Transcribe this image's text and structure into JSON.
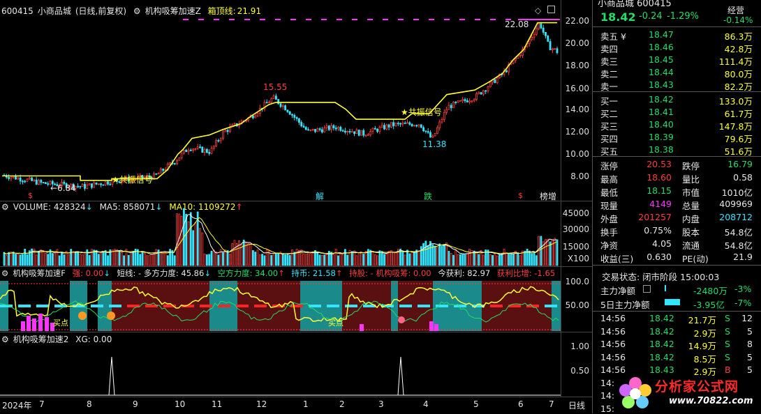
{
  "main_chart": {
    "stock_code": "600415",
    "stock_name": "小商品城",
    "period": "(日线,前复权)",
    "indicator_name": "机构吸筹加速Z",
    "top_line_label": "箱顶线:",
    "top_line_value": "21.91",
    "price_axis": [
      "22.00",
      "20.00",
      "18.00",
      "16.00",
      "14.00",
      "12.00",
      "10.00",
      "8.00"
    ],
    "annotations": {
      "high_label": "15.55",
      "low_label": "11.38",
      "peak_label": "22.08",
      "start_label": "←6.84",
      "signal_text": "共振信号",
      "marker_jie": "解",
      "marker_die": "跌",
      "marker_dollar": "$",
      "marker_bang": "榜增"
    },
    "colors": {
      "up": "#ff3b3b",
      "down": "#33e6ff",
      "box_line": "#ffff33",
      "signal": "#ff33ff"
    }
  },
  "volume_pane": {
    "volume_label": "VOLUME: 428324",
    "ma5_label": "MA5: 858071",
    "ma10_label": "MA10: 1109272",
    "axis": [
      "45000",
      "30000",
      "15000"
    ],
    "unit": "X100"
  },
  "indicator_pane": {
    "name": "机构吸筹加速F",
    "strong_label": "强: 0.00",
    "short_label": "短线: - 多方力度: 45.86",
    "short_force_label": "空方力度: 34.00",
    "hold_label": "持币: 21.58",
    "hold_stock_label": "持股: - 机构吸筹: 0.00",
    "profit_label": "今获利: 82.97",
    "profit_ratio_label": "获利比增: -1.65",
    "axis": [
      "100.0",
      "50.00"
    ],
    "buy_point_text": "买点"
  },
  "xg_pane": {
    "name": "机构吸筹加速2",
    "xg_label": "XG: 0.00",
    "axis": [
      "1.00",
      "0.50"
    ]
  },
  "time_axis": {
    "labels": [
      "2024年",
      "7",
      "8",
      "9",
      "10",
      "11",
      "12",
      "1",
      "2",
      "3",
      "4",
      "5",
      "6",
      "7"
    ],
    "period": "日线"
  },
  "quote_panel": {
    "title": "小商品城 600415",
    "price": "18.42",
    "change": "-0.24",
    "change_pct": "-1.29%",
    "tag": "经营",
    "tag_pct": "-0.14%",
    "asks": [
      {
        "label": "卖五 ¥",
        "price": "18.47",
        "vol": "86.3万"
      },
      {
        "label": "卖四",
        "price": "18.46",
        "vol": "42.8万"
      },
      {
        "label": "卖三",
        "price": "18.45",
        "vol": "111.4万"
      },
      {
        "label": "卖二",
        "price": "18.44",
        "vol": "80.0万"
      },
      {
        "label": "卖一",
        "price": "18.43",
        "vol": "82.2万"
      }
    ],
    "bids": [
      {
        "label": "买一",
        "price": "18.42",
        "vol": "133.0万"
      },
      {
        "label": "买二",
        "price": "18.41",
        "vol": "61.7万"
      },
      {
        "label": "买三",
        "price": "18.40",
        "vol": "147.8万"
      },
      {
        "label": "买四",
        "price": "18.39",
        "vol": "79.6万"
      },
      {
        "label": "买五",
        "price": "18.38",
        "vol": "51.6万"
      }
    ],
    "stats": [
      {
        "l1": "涨停",
        "v1": "20.53",
        "c1": "red",
        "l2": "跌停",
        "v2": "16.79",
        "c2": "green"
      },
      {
        "l1": "最高",
        "v1": "18.60",
        "c1": "red",
        "l2": "量比",
        "v2": "0.58",
        "c2": "white"
      },
      {
        "l1": "最低",
        "v1": "18.15",
        "c1": "green",
        "l2": "市值",
        "v2": "1010亿",
        "c2": "white"
      },
      {
        "l1": "现量",
        "v1": "4149",
        "c1": "magenta",
        "l2": "总量",
        "v2": "409969",
        "c2": "white"
      },
      {
        "l1": "外盘",
        "v1": "201257",
        "c1": "red",
        "l2": "内盘",
        "v2": "208712",
        "c2": "cyan"
      },
      {
        "l1": "换手",
        "v1": "0.75%",
        "c1": "white",
        "l2": "股本",
        "v2": "54.8亿",
        "c2": "white"
      },
      {
        "l1": "净资",
        "v1": "4.05",
        "c1": "white",
        "l2": "流通",
        "v2": "54.8亿",
        "c2": "white"
      },
      {
        "l1": "收益(三)",
        "v1": "0.630",
        "c1": "white",
        "l2": "PE(动)",
        "v2": "21.9",
        "c2": "white"
      }
    ],
    "trade_status": "交易状态: 闭市阶段 15:00:03",
    "main_net_label": "主力净额",
    "main_net_value": "-2480万",
    "main_net_pct": "-3%",
    "five_day_label": "5日主力净额",
    "five_day_value": "-3.95亿",
    "five_day_pct": "-7%",
    "ticks": [
      {
        "time": "14:56",
        "price": "18.42",
        "vol": "21.7万",
        "side": "S",
        "n": "12"
      },
      {
        "time": "14:56",
        "price": "18.42",
        "vol": "2.9万",
        "side": "S",
        "n": "5"
      },
      {
        "time": "14:56",
        "price": "18.42",
        "vol": "14.9万",
        "side": "S",
        "n": "8"
      },
      {
        "time": "14:56",
        "price": "18.42",
        "vol": "8.5万",
        "side": "S",
        "n": "5"
      },
      {
        "time": "14:56",
        "price": "18.43",
        "vol": "2.9万",
        "side": "B",
        "n": "5"
      },
      {
        "time": "14:",
        "price": "",
        "vol": "",
        "side": "",
        "n": ""
      },
      {
        "time": "14:",
        "price": "",
        "vol": "",
        "side": "",
        "n": ""
      },
      {
        "time": "15:",
        "price": "",
        "vol": "",
        "side": "",
        "n": ""
      }
    ],
    "watermark_text": "分析家公式网",
    "watermark_url": "www.70822.com"
  }
}
